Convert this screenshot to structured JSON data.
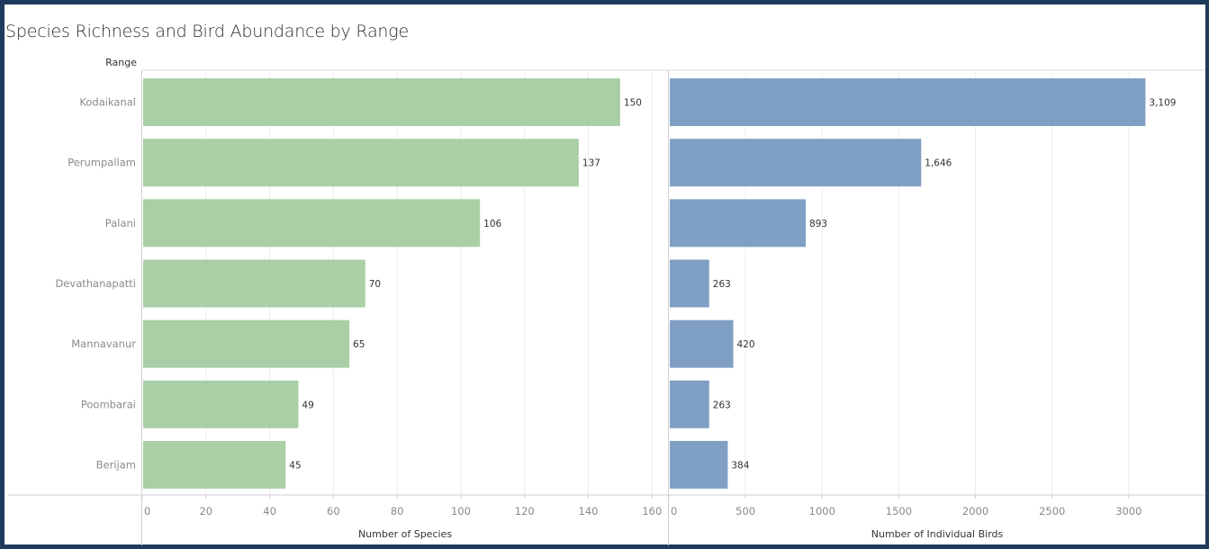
{
  "chart_data": {
    "type": "bar",
    "orientation": "horizontal",
    "title": "Species Richness and Bird Abundance by Range",
    "row_header": "Range",
    "categories": [
      "Kodaikanal",
      "Perumpallam",
      "Palani",
      "Devathanapatti",
      "Mannavanur",
      "Poombarai",
      "Berijam"
    ],
    "panels": [
      {
        "xlabel": "Number of Species",
        "values": [
          150,
          137,
          106,
          70,
          65,
          49,
          45
        ],
        "value_labels": [
          "150",
          "137",
          "106",
          "70",
          "65",
          "49",
          "45"
        ],
        "xlim": [
          0,
          165
        ],
        "ticks": [
          0,
          20,
          40,
          60,
          80,
          100,
          120,
          140,
          160
        ],
        "color": "#aacfa6"
      },
      {
        "xlabel": "Number of Individual Birds",
        "values": [
          3109,
          1646,
          893,
          263,
          420,
          263,
          384
        ],
        "value_labels": [
          "3,109",
          "1,646",
          "893",
          "263",
          "420",
          "263",
          "384"
        ],
        "xlim": [
          0,
          3500
        ],
        "ticks": [
          0,
          500,
          1000,
          1500,
          2000,
          2500,
          3000
        ],
        "color": "#7f9fc4"
      }
    ],
    "grid": true,
    "legend": "none"
  },
  "colors": {
    "frame": "#1f3a5c",
    "axis_text": "#8a8a8a",
    "label_text": "#333333",
    "gridline": "#ececec"
  }
}
